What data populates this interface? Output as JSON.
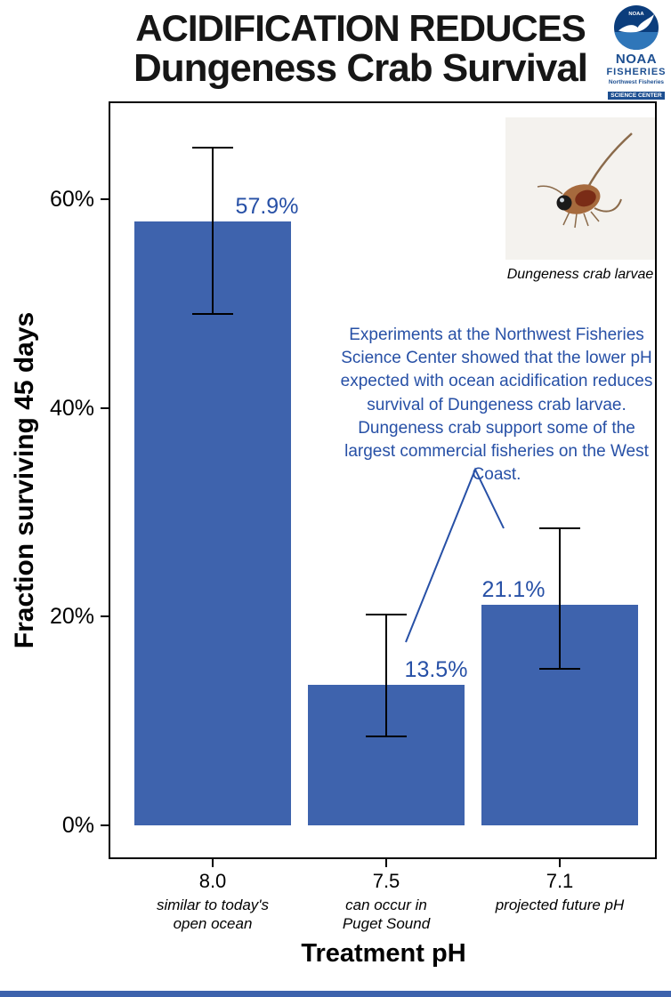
{
  "header": {
    "title_line1": "ACIDIFICATION REDUCES",
    "title_line2": "Dungeness Crab Survival"
  },
  "logo": {
    "org": "NOAA",
    "dept": "FISHERIES",
    "sub1": "Northwest Fisheries",
    "sub2": "SCIENCE CENTER"
  },
  "inset": {
    "caption": "Dungeness crab larvae"
  },
  "annotation": {
    "text": "Experiments at the Northwest Fisheries Science Center showed that the lower pH expected with ocean acidification reduces survival of Dungeness crab larvae. Dungeness crab support some of the largest commercial fisheries on the West Coast."
  },
  "chart_data": {
    "type": "bar",
    "title": "Acidification Reduces Dungeness Crab Survival",
    "categories": [
      "8.0",
      "7.5",
      "7.1"
    ],
    "category_notes": [
      "similar to today's\nopen ocean",
      "can occur in\nPuget Sound",
      "projected future pH"
    ],
    "values": [
      57.9,
      13.5,
      21.1
    ],
    "value_labels": [
      "57.9%",
      "13.5%",
      "21.1%"
    ],
    "error_low": [
      49.0,
      8.5,
      15.0
    ],
    "error_high": [
      65.0,
      20.2,
      28.5
    ],
    "xlabel": "Treatment pH",
    "ylabel": "Fraction surviving 45 days",
    "yticks": [
      0,
      20,
      40,
      60
    ],
    "ytick_labels": [
      "0%",
      "20%",
      "40%",
      "60%"
    ],
    "ylim": [
      0,
      69
    ],
    "grid": false,
    "legend": "none",
    "bar_color": "#3e63ad",
    "annotation_color": "#2750a6"
  }
}
